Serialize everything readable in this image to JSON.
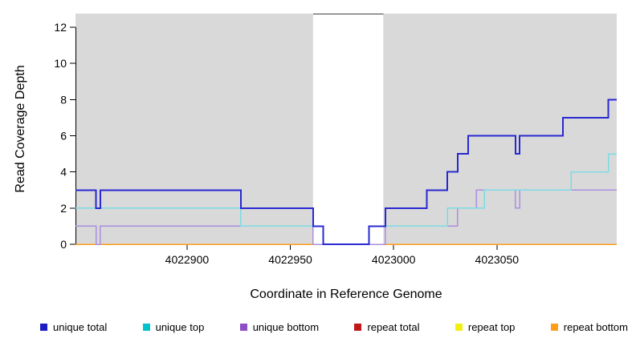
{
  "chart_data": {
    "type": "line",
    "subtype": "step-coverage",
    "title": "",
    "xlabel": "Coordinate in Reference Genome",
    "ylabel": "Read Coverage Depth",
    "xlim": [
      4022846,
      4023108
    ],
    "ylim": [
      0,
      12.75
    ],
    "x_ticks": [
      4022900,
      4022950,
      4023000,
      4023050
    ],
    "y_ticks": [
      0,
      2,
      4,
      6,
      8,
      10,
      12
    ],
    "plot": {
      "bg_color": "#d9d9d9",
      "gap_region": [
        4022961,
        4022995
      ],
      "gap_color": "#ffffff",
      "gap_top_border_color": "#404040",
      "grid": false,
      "legend_position": "bottom"
    },
    "series": [
      {
        "name": "repeat total",
        "color": "#c01818",
        "step_points": [
          [
            4022846,
            0
          ]
        ]
      },
      {
        "name": "repeat top",
        "color": "#f0ef10",
        "step_points": [
          [
            4022846,
            0
          ]
        ]
      },
      {
        "name": "repeat bottom",
        "color": "#ff9e1b",
        "step_points": [
          [
            4022846,
            0
          ]
        ]
      },
      {
        "name": "unique bottom",
        "color": "#ab8ede",
        "step_points": [
          [
            4022846,
            1
          ],
          [
            4022856,
            0
          ],
          [
            4022858,
            1
          ],
          [
            4022961,
            0
          ],
          [
            4022996,
            1
          ],
          [
            4023031,
            2
          ],
          [
            4023040,
            3
          ],
          [
            4023059,
            2
          ],
          [
            4023061,
            3
          ]
        ]
      },
      {
        "name": "unique top",
        "color": "#7cdce4",
        "step_points": [
          [
            4022846,
            2
          ],
          [
            4022926,
            1
          ],
          [
            4022966,
            0
          ],
          [
            4022988,
            1
          ],
          [
            4023026,
            2
          ],
          [
            4023044,
            3
          ],
          [
            4023086,
            4
          ],
          [
            4023104,
            5
          ]
        ]
      },
      {
        "name": "unique total",
        "color": "#2828d2",
        "step_points": [
          [
            4022846,
            3
          ],
          [
            4022856,
            2
          ],
          [
            4022858,
            3
          ],
          [
            4022926,
            2
          ],
          [
            4022961,
            1
          ],
          [
            4022966,
            0
          ],
          [
            4022988,
            1
          ],
          [
            4022996,
            2
          ],
          [
            4023016,
            3
          ],
          [
            4023026,
            4
          ],
          [
            4023031,
            5
          ],
          [
            4023036,
            6
          ],
          [
            4023059,
            5
          ],
          [
            4023061,
            6
          ],
          [
            4023082,
            7
          ],
          [
            4023104,
            8
          ]
        ]
      }
    ],
    "legend": [
      {
        "label": "unique total",
        "color": "#1c1cc4"
      },
      {
        "label": "unique top",
        "color": "#00c2cc"
      },
      {
        "label": "unique bottom",
        "color": "#8c4fc8"
      },
      {
        "label": "repeat total",
        "color": "#c01818"
      },
      {
        "label": "repeat top",
        "color": "#f0ef10"
      },
      {
        "label": "repeat bottom",
        "color": "#ff9e1b"
      }
    ]
  }
}
